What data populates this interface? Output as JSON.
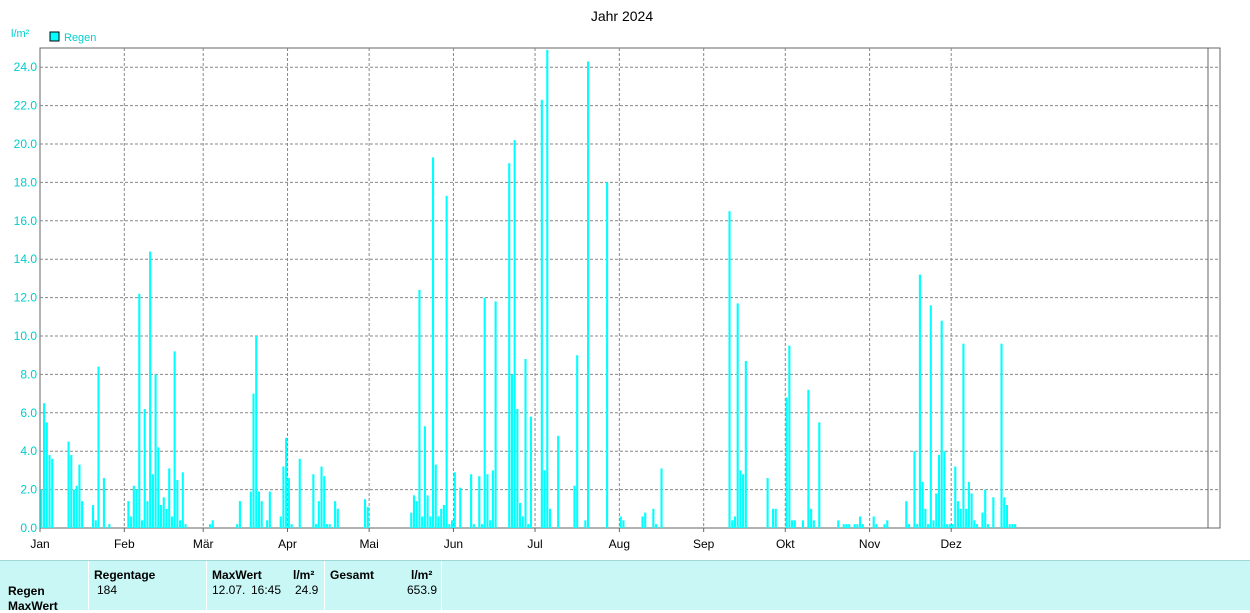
{
  "chart_data": {
    "type": "bar",
    "title": "Jahr 2024",
    "ylabel": "l/m²",
    "xlabel": "",
    "ylim": [
      0,
      25
    ],
    "yticks": [
      "0.0",
      "2.0",
      "4.0",
      "6.0",
      "8.0",
      "10.0",
      "12.0",
      "14.0",
      "16.0",
      "18.0",
      "20.0",
      "22.0",
      "24.0"
    ],
    "months": [
      "Jan",
      "Feb",
      "Mär",
      "Apr",
      "Mai",
      "Jun",
      "Jul",
      "Aug",
      "Sep",
      "Okt",
      "Nov",
      "Dez"
    ],
    "grid": true,
    "legend": "top-left",
    "series": [
      {
        "name": "Regen",
        "color": "#00ffff",
        "points": [
          [
            1,
            2.0
          ],
          [
            2,
            6.5
          ],
          [
            3,
            5.5
          ],
          [
            4,
            3.8
          ],
          [
            5,
            3.6
          ],
          [
            11,
            4.5
          ],
          [
            12,
            3.8
          ],
          [
            13,
            2.0
          ],
          [
            14,
            2.2
          ],
          [
            15,
            3.3
          ],
          [
            16,
            1.4
          ],
          [
            20,
            1.2
          ],
          [
            21,
            0.4
          ],
          [
            22,
            8.4
          ],
          [
            24,
            2.6
          ],
          [
            26,
            0.2
          ],
          [
            33,
            1.4
          ],
          [
            34,
            0.6
          ],
          [
            35,
            2.2
          ],
          [
            36,
            2.0
          ],
          [
            37,
            12.2
          ],
          [
            38,
            0.4
          ],
          [
            39,
            6.2
          ],
          [
            40,
            1.4
          ],
          [
            41,
            14.4
          ],
          [
            42,
            2.8
          ],
          [
            43,
            8.0
          ],
          [
            44,
            4.2
          ],
          [
            45,
            1.2
          ],
          [
            46,
            1.6
          ],
          [
            47,
            1.0
          ],
          [
            48,
            3.1
          ],
          [
            49,
            0.6
          ],
          [
            50,
            9.2
          ],
          [
            51,
            2.5
          ],
          [
            52,
            0.4
          ],
          [
            53,
            2.9
          ],
          [
            54,
            0.2
          ],
          [
            63,
            0.2
          ],
          [
            64,
            0.4
          ],
          [
            73,
            0.2
          ],
          [
            74,
            1.4
          ],
          [
            78,
            1.9
          ],
          [
            79,
            7.0
          ],
          [
            80,
            10.0
          ],
          [
            81,
            1.9
          ],
          [
            82,
            1.4
          ],
          [
            84,
            0.4
          ],
          [
            85,
            1.9
          ],
          [
            89,
            0.6
          ],
          [
            90,
            3.2
          ],
          [
            91,
            4.7
          ],
          [
            92,
            2.6
          ],
          [
            93,
            0.2
          ],
          [
            96,
            3.6
          ],
          [
            101,
            2.8
          ],
          [
            102,
            0.2
          ],
          [
            103,
            1.4
          ],
          [
            104,
            3.2
          ],
          [
            105,
            2.7
          ],
          [
            106,
            0.2
          ],
          [
            107,
            0.2
          ],
          [
            109,
            1.4
          ],
          [
            110,
            1.0
          ],
          [
            120,
            1.5
          ],
          [
            121,
            1.1
          ],
          [
            137,
            0.8
          ],
          [
            138,
            1.7
          ],
          [
            139,
            1.4
          ],
          [
            140,
            12.4
          ],
          [
            141,
            0.6
          ],
          [
            142,
            5.3
          ],
          [
            143,
            1.7
          ],
          [
            144,
            0.6
          ],
          [
            145,
            19.3
          ],
          [
            146,
            3.3
          ],
          [
            147,
            0.6
          ],
          [
            148,
            1.0
          ],
          [
            149,
            1.2
          ],
          [
            150,
            17.3
          ],
          [
            151,
            0.2
          ],
          [
            152,
            0.4
          ],
          [
            153,
            2.9
          ],
          [
            155,
            2.1
          ],
          [
            159,
            2.8
          ],
          [
            160,
            0.2
          ],
          [
            162,
            2.7
          ],
          [
            163,
            0.2
          ],
          [
            164,
            12.0
          ],
          [
            165,
            2.8
          ],
          [
            166,
            0.4
          ],
          [
            167,
            3.0
          ],
          [
            168,
            11.8
          ],
          [
            173,
            19.0
          ],
          [
            174,
            8.0
          ],
          [
            175,
            20.2
          ],
          [
            176,
            6.2
          ],
          [
            177,
            1.3
          ],
          [
            178,
            0.6
          ],
          [
            179,
            8.8
          ],
          [
            180,
            0.2
          ],
          [
            181,
            5.8
          ],
          [
            185,
            22.3
          ],
          [
            186,
            3.0
          ],
          [
            187,
            24.9
          ],
          [
            188,
            1.0
          ],
          [
            191,
            4.8
          ],
          [
            197,
            2.2
          ],
          [
            198,
            9.0
          ],
          [
            201,
            0.4
          ],
          [
            202,
            24.3
          ],
          [
            209,
            18.0
          ],
          [
            214,
            0.6
          ],
          [
            215,
            0.4
          ],
          [
            222,
            0.6
          ],
          [
            223,
            0.8
          ],
          [
            226,
            1.0
          ],
          [
            227,
            0.2
          ],
          [
            229,
            3.1
          ],
          [
            254,
            16.5
          ],
          [
            255,
            0.4
          ],
          [
            256,
            0.6
          ],
          [
            257,
            11.7
          ],
          [
            258,
            3.0
          ],
          [
            259,
            2.8
          ],
          [
            260,
            8.7
          ],
          [
            268,
            2.6
          ],
          [
            270,
            1.0
          ],
          [
            271,
            1.0
          ],
          [
            275,
            6.8
          ],
          [
            276,
            9.5
          ],
          [
            277,
            0.4
          ],
          [
            278,
            0.4
          ],
          [
            281,
            0.4
          ],
          [
            283,
            7.2
          ],
          [
            284,
            1.0
          ],
          [
            285,
            0.4
          ],
          [
            287,
            5.5
          ],
          [
            294,
            0.4
          ],
          [
            296,
            0.2
          ],
          [
            297,
            0.2
          ],
          [
            298,
            0.2
          ],
          [
            300,
            0.2
          ],
          [
            301,
            0.2
          ],
          [
            302,
            0.6
          ],
          [
            303,
            0.2
          ],
          [
            307,
            0.6
          ],
          [
            308,
            0.2
          ],
          [
            311,
            0.2
          ],
          [
            312,
            0.4
          ],
          [
            319,
            1.4
          ],
          [
            320,
            0.2
          ],
          [
            322,
            4.0
          ],
          [
            323,
            0.2
          ],
          [
            324,
            13.2
          ],
          [
            325,
            2.4
          ],
          [
            326,
            1.0
          ],
          [
            327,
            0.2
          ],
          [
            328,
            11.6
          ],
          [
            329,
            0.4
          ],
          [
            330,
            1.8
          ],
          [
            331,
            3.8
          ],
          [
            332,
            10.8
          ],
          [
            333,
            4.0
          ],
          [
            334,
            0.2
          ],
          [
            335,
            0.2
          ],
          [
            336,
            0.2
          ],
          [
            337,
            3.2
          ],
          [
            338,
            1.4
          ],
          [
            339,
            1.0
          ],
          [
            340,
            9.6
          ],
          [
            341,
            1.0
          ],
          [
            342,
            2.4
          ],
          [
            343,
            1.8
          ],
          [
            344,
            0.4
          ],
          [
            345,
            0.2
          ],
          [
            347,
            0.8
          ],
          [
            348,
            2.0
          ],
          [
            349,
            0.2
          ],
          [
            351,
            1.6
          ],
          [
            354,
            9.6
          ],
          [
            355,
            1.6
          ],
          [
            356,
            1.2
          ],
          [
            357,
            0.2
          ],
          [
            358,
            0.2
          ],
          [
            359,
            0.2
          ]
        ]
      }
    ]
  },
  "stats": {
    "row_regen": "Regen",
    "row_maxwert": "MaxWert",
    "col_regentage": "Regentage",
    "col_maxwert": "MaxWert",
    "col_unit1": "l/m²",
    "col_gesamt": "Gesamt",
    "col_unit2": "l/m²",
    "regentage": "184",
    "max_date": "12.07.",
    "max_time": "16:45",
    "max_value": "24.9",
    "total": "653.9"
  }
}
